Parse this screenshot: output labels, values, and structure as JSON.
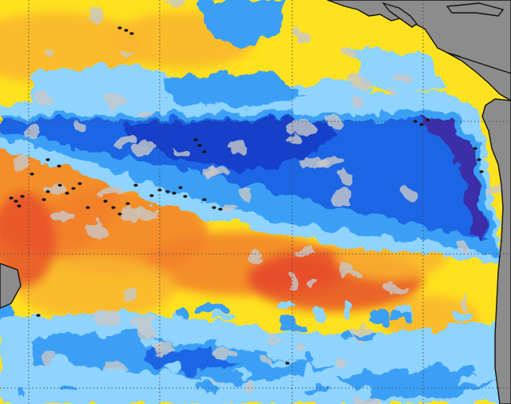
{
  "map": {
    "kind": "sea-surface-temperature-anomaly",
    "region": "equatorial-pacific",
    "projection": "equirectangular",
    "colors": {
      "land": "#8c8c8c",
      "coastline": "#111111",
      "neutral": "#c8c8c8",
      "warm_light": "#ffe21f",
      "warm": "#f9b52f",
      "warm_strong": "#f27f2b",
      "hot": "#e8502c",
      "cool_light": "#8fd3ff",
      "cool": "#3ba0f5",
      "cold": "#1e66e6",
      "colder": "#1541c9",
      "coldest": "#3a2fa8",
      "gridline": "#444444"
    },
    "graticule": "dotted",
    "labels": []
  }
}
